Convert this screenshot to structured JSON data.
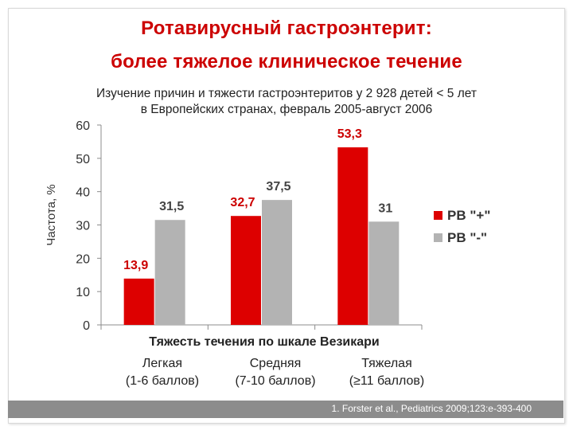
{
  "slide": {
    "title_line1": "Ротавирусный гастроэнтерит:",
    "title_line2": "более тяжелое клиническое течение",
    "subtitle_line1": "Изучение причин и тяжести гастроэнтеритов у 2 928 детей < 5 лет",
    "subtitle_line2": "в Европейских странах, февраль 2005-август 2006",
    "footnote": "1. Forster et al., Pediatrics 2009;123:e-393-400"
  },
  "chart_data": {
    "type": "bar",
    "xlabel": "Тяжесть течения по шкале Везикари",
    "ylabel": "Частота, %",
    "ylim": [
      0,
      60
    ],
    "yticks": [
      0,
      10,
      20,
      30,
      40,
      50,
      60
    ],
    "categories": [
      {
        "line1": "Легкая",
        "line2": "(1-6 баллов)"
      },
      {
        "line1": "Средняя",
        "line2": "(7-10 баллов)"
      },
      {
        "line1": "Тяжелая",
        "line2": "(≥11 баллов)"
      }
    ],
    "series": [
      {
        "name": "РВ \"+\"",
        "color": "#dd0000",
        "label_color": "#cc0000",
        "values": [
          13.9,
          32.7,
          53.3
        ],
        "labels": [
          "13,9",
          "32,7",
          "53,3"
        ]
      },
      {
        "name": "РВ \"-\"",
        "color": "#b3b3b3",
        "label_color": "#444444",
        "values": [
          31.5,
          37.5,
          31
        ],
        "labels": [
          "31,5",
          "37,5",
          "31"
        ]
      }
    ],
    "legend_position": "right",
    "grid": false
  }
}
